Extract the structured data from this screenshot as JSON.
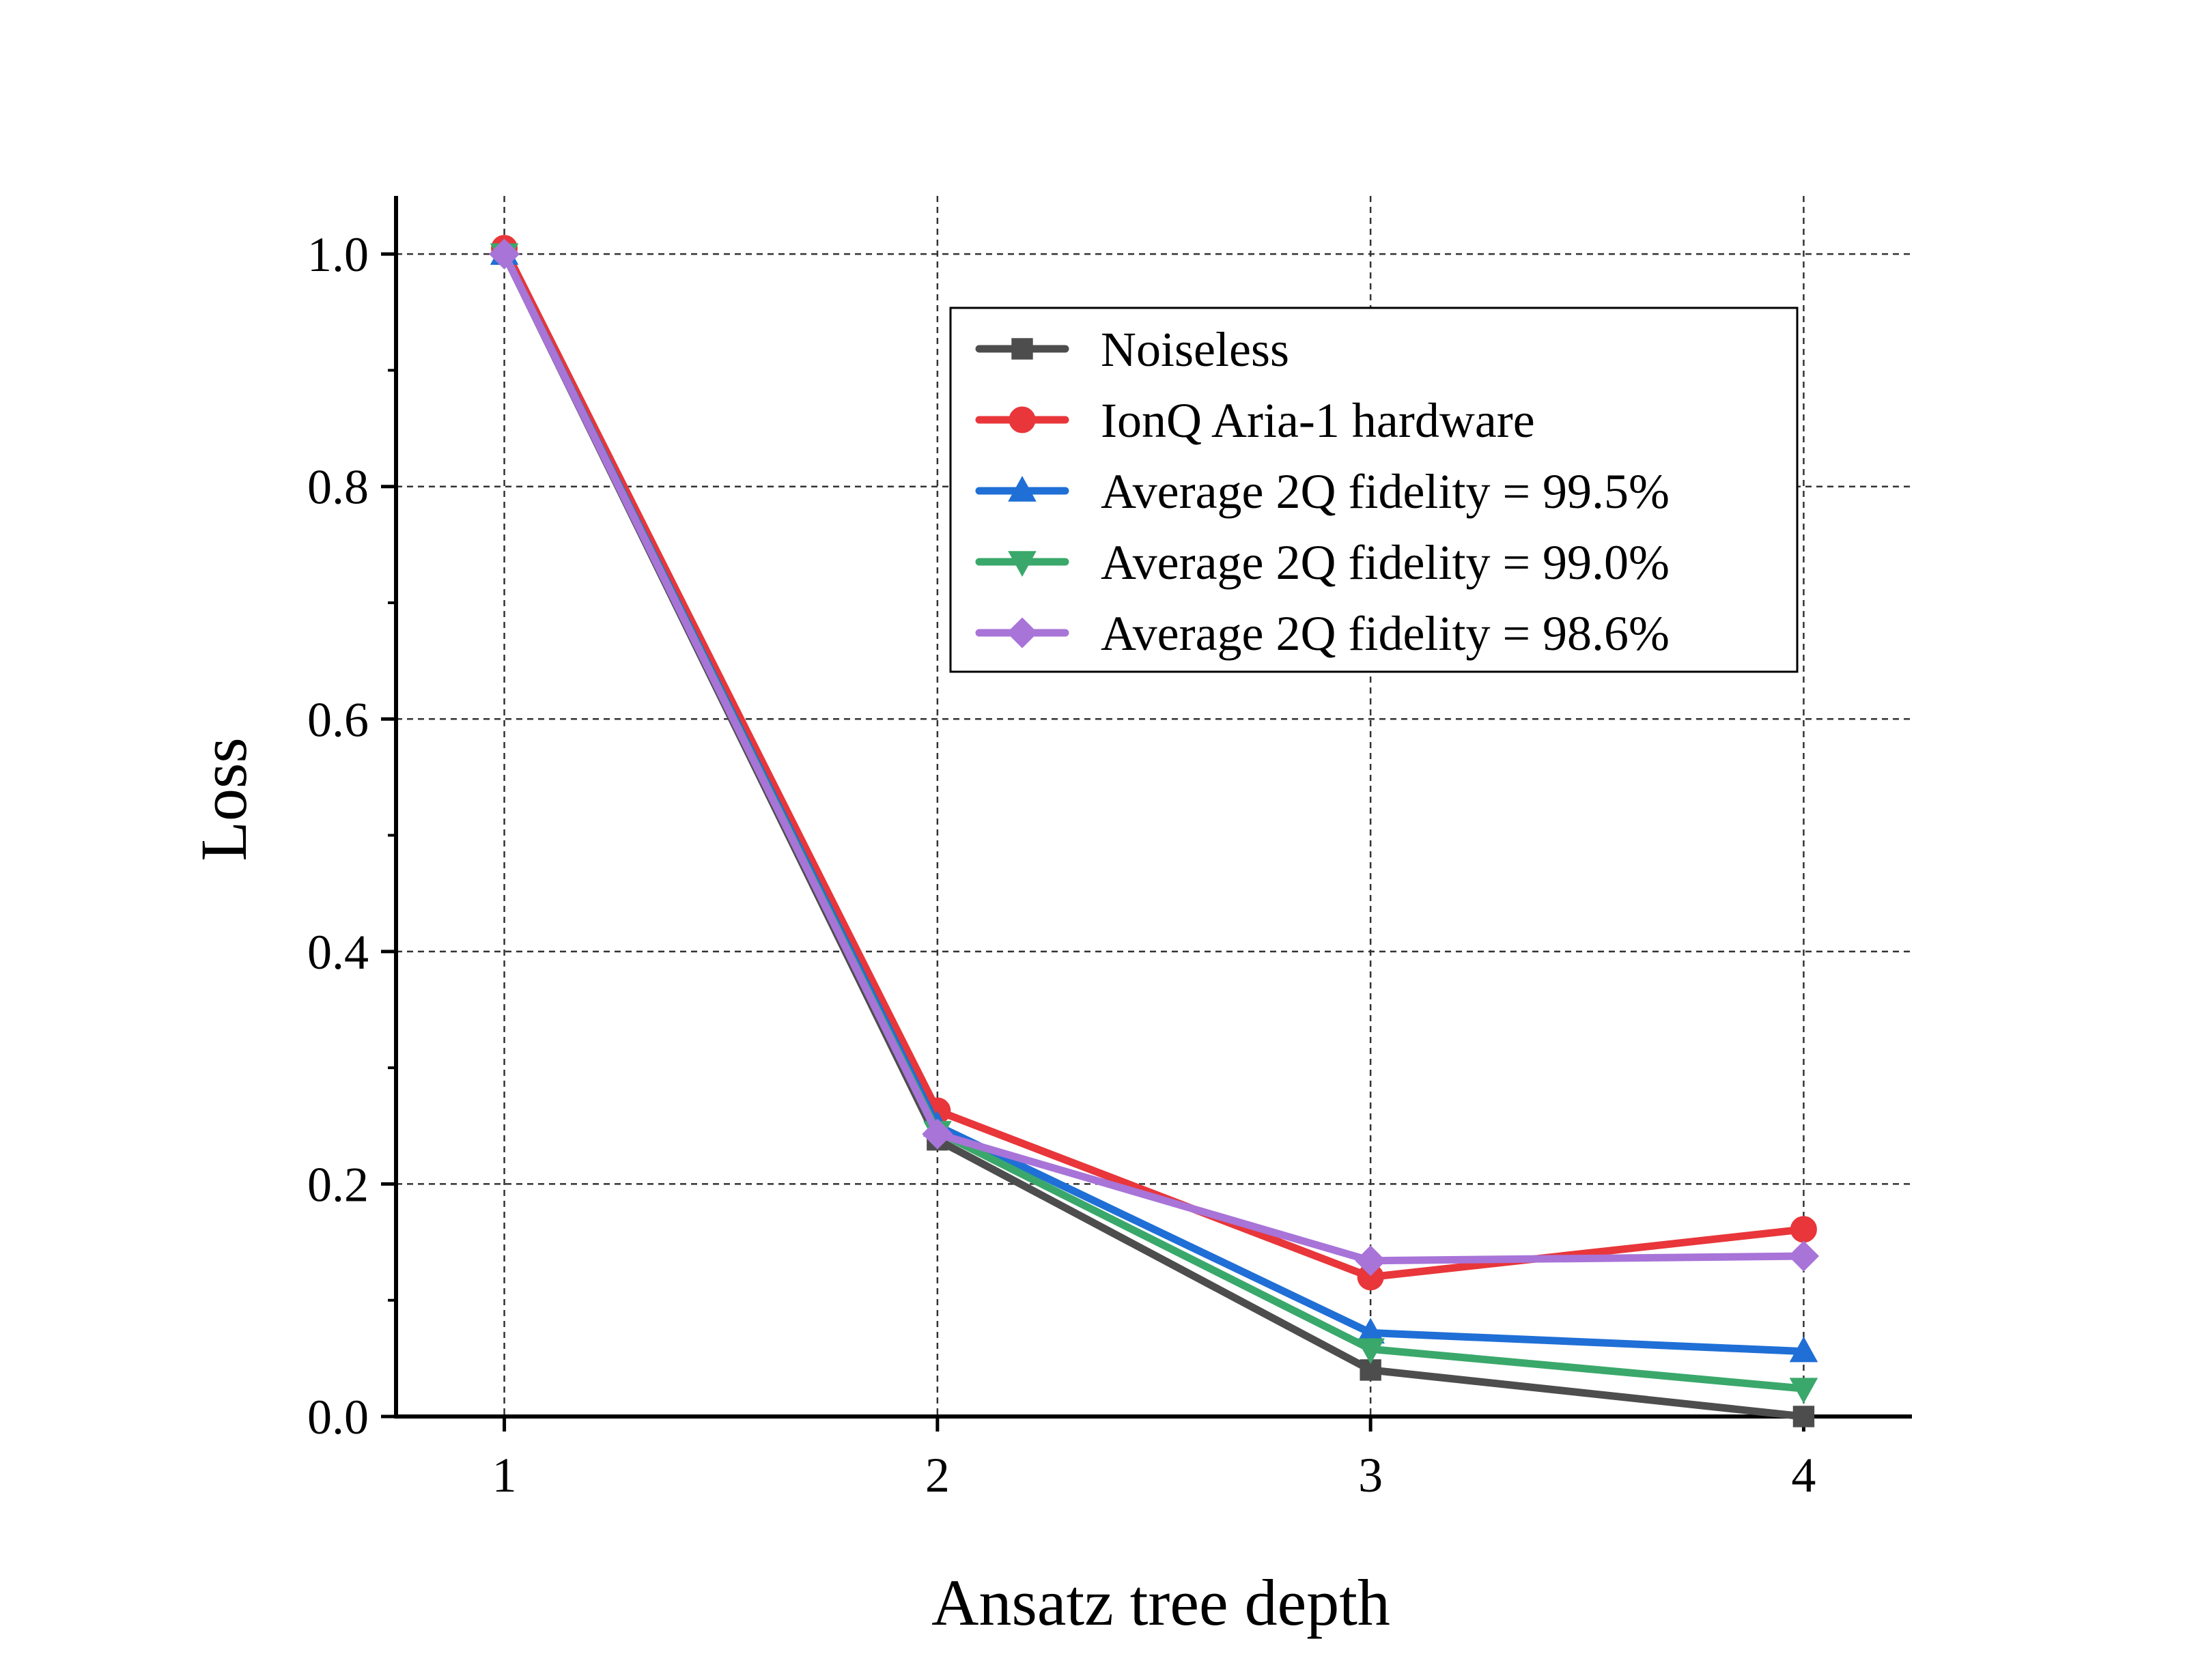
{
  "chart_data": {
    "type": "line",
    "title": "",
    "xlabel": "Ansatz tree depth",
    "ylabel": "Loss",
    "x": [
      1,
      2,
      3,
      4
    ],
    "xticks": [
      "1",
      "2",
      "3",
      "4"
    ],
    "xlim": [
      0.75,
      4.25
    ],
    "ylim": [
      0.0,
      1.05
    ],
    "yticks": [
      "0.0",
      "0.2",
      "0.4",
      "0.6",
      "0.8",
      "1.0"
    ],
    "ytick_values": [
      0.0,
      0.2,
      0.4,
      0.6,
      0.8,
      1.0
    ],
    "grid": true,
    "legend_position": "top-right",
    "series": [
      {
        "name": "Noiseless",
        "values": [
          1.0,
          0.238,
          0.04,
          0.0
        ],
        "color": "#4d4d4d",
        "marker": "square"
      },
      {
        "name": "IonQ Aria-1 hardware",
        "values": [
          1.005,
          0.263,
          0.12,
          0.161
        ],
        "color": "#e8363a",
        "marker": "circle"
      },
      {
        "name": "Average 2Q fidelity = 99.5%",
        "values": [
          1.0,
          0.25,
          0.072,
          0.056
        ],
        "color": "#1f6fd6",
        "marker": "triangle-up"
      },
      {
        "name": "Average 2Q fidelity = 99.0%",
        "values": [
          1.0,
          0.245,
          0.058,
          0.024
        ],
        "color": "#3aa86b",
        "marker": "triangle-down"
      },
      {
        "name": "Average 2Q fidelity = 98.6%",
        "values": [
          1.0,
          0.243,
          0.134,
          0.138
        ],
        "color": "#a874d8",
        "marker": "diamond"
      }
    ]
  }
}
